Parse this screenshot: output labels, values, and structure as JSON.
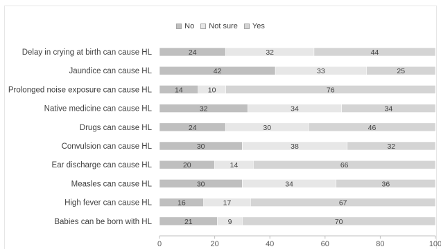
{
  "chart_data": {
    "type": "bar",
    "orientation": "horizontal",
    "stacked": true,
    "categories": [
      "Delay in crying at birth can cause HL",
      "Jaundice can cause HL",
      "Prolonged noise exposure can cause HL",
      "Native medicine can cause HL",
      "Drugs can cause HL",
      "Convulsion can cause HL",
      "Ear discharge can cause HL",
      "Measles can cause HL",
      "High fever can cause HL",
      "Babies can be born with HL"
    ],
    "series": [
      {
        "name": "No",
        "color": "#bfbfbf",
        "values": [
          24,
          42,
          14,
          32,
          24,
          30,
          20,
          30,
          16,
          21
        ]
      },
      {
        "name": "Not sure",
        "color": "#e7e7e7",
        "values": [
          32,
          33,
          10,
          34,
          30,
          38,
          14,
          34,
          17,
          9
        ]
      },
      {
        "name": "Yes",
        "color": "#d4d4d4",
        "values": [
          44,
          25,
          76,
          34,
          46,
          32,
          66,
          36,
          67,
          70
        ]
      }
    ],
    "xlim": [
      0,
      100
    ],
    "xticks": [
      "0",
      "20",
      "40",
      "60",
      "80",
      "100"
    ],
    "legend_position": "top-center",
    "data_labels": true,
    "grid": false
  }
}
